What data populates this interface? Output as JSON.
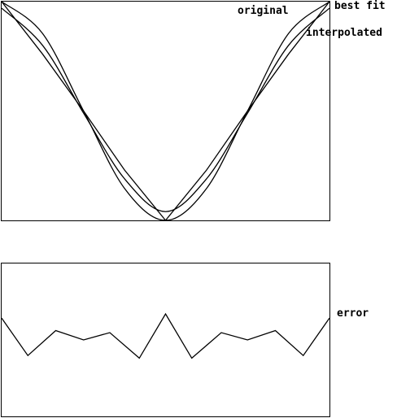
{
  "chart_data": [
    {
      "type": "line",
      "x": [
        0,
        0.125,
        0.25,
        0.375,
        0.5,
        0.625,
        0.75,
        0.875,
        1
      ],
      "series": [
        {
          "name": "original",
          "values": [
            1,
            0.854,
            0.5,
            0.146,
            0,
            0.146,
            0.5,
            0.854,
            1
          ]
        },
        {
          "name": "best fit",
          "values": [
            0.97,
            0.8,
            0.49,
            0.19,
            0.04,
            0.19,
            0.49,
            0.8,
            0.97
          ]
        },
        {
          "name": "interpolated",
          "values": [
            1,
            0.76,
            0.5,
            0.23,
            0,
            0.23,
            0.5,
            0.76,
            1
          ]
        }
      ],
      "legend": "top-right, labels beside line ends",
      "grid": false,
      "xlim": [
        0,
        1
      ],
      "ylim": [
        0,
        1
      ]
    },
    {
      "type": "line",
      "x": [
        0,
        0.08,
        0.165,
        0.25,
        0.33,
        0.42,
        0.5,
        0.58,
        0.67,
        0.75,
        0.835,
        0.92,
        1
      ],
      "series": [
        {
          "name": "error",
          "values": [
            0.92,
            0.2,
            0.68,
            0.5,
            0.64,
            0.15,
            1,
            0.15,
            0.64,
            0.5,
            0.68,
            0.2,
            0.92
          ]
        }
      ],
      "grid": false,
      "xlim": [
        0,
        1
      ],
      "ylim": [
        0,
        1
      ]
    }
  ]
}
